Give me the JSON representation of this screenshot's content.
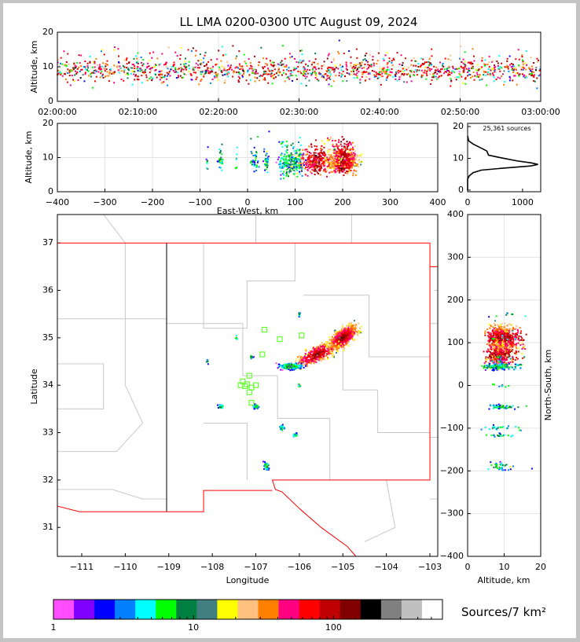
{
  "chart_data": [
    {
      "id": "time",
      "type": "scatter",
      "title": "LL LMA 0200-0300 UTC August 09, 2024",
      "ylabel": "Altitude, km",
      "xlim_minutes": [
        0,
        60
      ],
      "ylim": [
        0,
        20
      ],
      "xticks": [
        "02:00:00",
        "02:10:00",
        "02:20:00",
        "02:30:00",
        "02:40:00",
        "02:50:00",
        "03:00:00"
      ],
      "yticks": [
        "0",
        "10",
        "20"
      ]
    },
    {
      "id": "ew",
      "type": "scatter",
      "xlabel": "East-West, km",
      "ylabel": "Altitude, km",
      "xlim": [
        -400,
        400
      ],
      "ylim": [
        0,
        20
      ],
      "xticks": [
        "−400",
        "−300",
        "−200",
        "−100",
        "0",
        "100",
        "200",
        "300",
        "400"
      ],
      "yticks": [
        "0",
        "10",
        "20"
      ]
    },
    {
      "id": "hist",
      "type": "line",
      "annotation": "25,361 sources",
      "xlim": [
        0,
        1330
      ],
      "ylim": [
        -0.5,
        21
      ],
      "xticks": [
        "0",
        "1000"
      ],
      "yticks": [
        "0",
        "10",
        "20"
      ],
      "curve": [
        [
          0,
          17
        ],
        [
          20,
          15.5
        ],
        [
          100,
          14.5
        ],
        [
          250,
          13.2
        ],
        [
          350,
          12.3
        ],
        [
          380,
          11
        ],
        [
          600,
          10.2
        ],
        [
          900,
          9.2
        ],
        [
          1150,
          8.6
        ],
        [
          1280,
          8.1
        ],
        [
          1150,
          7.6
        ],
        [
          700,
          7
        ],
        [
          250,
          6.3
        ],
        [
          100,
          5.5
        ],
        [
          30,
          4.5
        ],
        [
          0,
          3.5
        ],
        [
          0,
          0
        ]
      ]
    },
    {
      "id": "map",
      "type": "scatter",
      "xlabel": "Longitude",
      "ylabel": "Latitude",
      "xlim": [
        -111.56,
        -102.82
      ],
      "ylim": [
        30.39,
        37.6
      ],
      "xticks": [
        "−111",
        "−110",
        "−109",
        "−108",
        "−107",
        "−106",
        "−105",
        "−104",
        "−103"
      ],
      "yticks": [
        "31",
        "32",
        "33",
        "34",
        "35",
        "36",
        "37"
      ],
      "clusters": [
        {
          "lon": -105.0,
          "lat": 35.0,
          "slon": 0.22,
          "slat": 0.13,
          "alt": 9,
          "n": 700
        },
        {
          "lon": -105.6,
          "lat": 34.65,
          "slon": 0.3,
          "slat": 0.12,
          "alt": 8.5,
          "n": 350
        },
        {
          "lon": -106.2,
          "lat": 34.4,
          "slon": 0.2,
          "slat": 0.05,
          "alt": 8,
          "n": 150
        },
        {
          "lon": -107.8,
          "lat": 33.55,
          "slon": 0.05,
          "slat": 0.03,
          "alt": 9,
          "n": 30
        },
        {
          "lon": -107.0,
          "lat": 33.55,
          "slon": 0.05,
          "slat": 0.03,
          "alt": 8,
          "n": 25
        },
        {
          "lon": -106.4,
          "lat": 33.1,
          "slon": 0.05,
          "slat": 0.04,
          "alt": 8,
          "n": 25
        },
        {
          "lon": -106.1,
          "lat": 32.95,
          "slon": 0.04,
          "slat": 0.03,
          "alt": 8,
          "n": 20
        },
        {
          "lon": -106.75,
          "lat": 32.3,
          "slon": 0.05,
          "slat": 0.07,
          "alt": 9,
          "n": 35
        },
        {
          "lon": -108.1,
          "lat": 34.5,
          "slon": 0.02,
          "slat": 0.03,
          "alt": 9,
          "n": 8
        },
        {
          "lon": -107.45,
          "lat": 35.0,
          "slon": 0.02,
          "slat": 0.04,
          "alt": 9,
          "n": 8
        },
        {
          "lon": -106.0,
          "lat": 35.5,
          "slon": 0.02,
          "slat": 0.04,
          "alt": 10,
          "n": 8
        },
        {
          "lon": -107.1,
          "lat": 34.6,
          "slon": 0.03,
          "slat": 0.03,
          "alt": 9,
          "n": 10
        },
        {
          "lon": -106.0,
          "lat": 34.0,
          "slon": 0.02,
          "slat": 0.03,
          "alt": 9,
          "n": 8
        }
      ],
      "stations": [
        [
          -107.35,
          34.0
        ],
        [
          -107.3,
          34.08
        ],
        [
          -107.2,
          34.02
        ],
        [
          -107.15,
          34.2
        ],
        [
          -107.1,
          33.95
        ],
        [
          -107.15,
          33.85
        ],
        [
          -107.1,
          33.63
        ],
        [
          -106.85,
          34.65
        ],
        [
          -106.8,
          35.17
        ],
        [
          -106.45,
          34.97
        ],
        [
          -105.95,
          35.05
        ],
        [
          -107.0,
          34.0
        ],
        [
          -107.25,
          33.98
        ]
      ]
    },
    {
      "id": "ns",
      "type": "scatter",
      "xlabel": "Altitude, km",
      "ylabel": "North-South, km",
      "xlim": [
        0,
        20
      ],
      "ylim": [
        -400,
        400
      ],
      "xticks": [
        "0",
        "10",
        "20"
      ],
      "yticks": [
        "−400",
        "−300",
        "−200",
        "−100",
        "0",
        "100",
        "200",
        "300",
        "400"
      ]
    },
    {
      "id": "colorbar",
      "type": "colorbar",
      "label": "Sources/7 km²",
      "scale": "log",
      "range": [
        1,
        600
      ],
      "ticks": [
        "1",
        "10",
        "100"
      ],
      "colors": [
        "#ff4dff",
        "#8000ff",
        "#0000ff",
        "#0080ff",
        "#00ffff",
        "#00ff00",
        "#008040",
        "#408080",
        "#ffff00",
        "#ffc080",
        "#ff8000",
        "#ff0080",
        "#ff0000",
        "#c00000",
        "#800000",
        "#000000",
        "#808080",
        "#c0c0c0",
        "#ffffff"
      ]
    }
  ]
}
